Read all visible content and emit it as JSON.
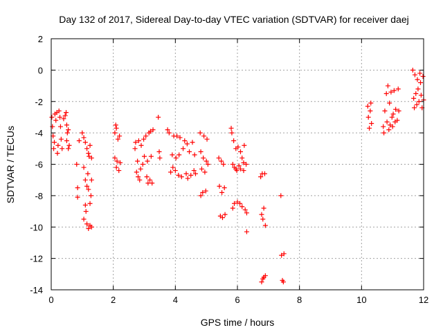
{
  "chart_data": {
    "type": "scatter",
    "title": "Day 132 of 2017, Sidereal Day-to-day VTEC variation (SDTVAR) for receiver daej",
    "xlabel": "GPS time / hours",
    "ylabel": "SDTVAR / TECUs",
    "xlim": [
      0,
      12
    ],
    "ylim": [
      -14,
      2
    ],
    "xticks": [
      0,
      2,
      4,
      6,
      8,
      10,
      12
    ],
    "yticks": [
      2,
      0,
      -2,
      -4,
      -6,
      -8,
      -10,
      -12,
      -14
    ],
    "grid": true,
    "marker": "plus",
    "color": "#ff0000",
    "series": [
      {
        "values": [
          [
            0.02,
            -3.0
          ],
          [
            0.04,
            -3.6
          ],
          [
            0.06,
            -4.2
          ],
          [
            0.08,
            -5.0
          ],
          [
            0.1,
            -4.6
          ],
          [
            0.12,
            -2.8
          ],
          [
            0.15,
            -3.2
          ],
          [
            0.18,
            -2.7
          ],
          [
            0.2,
            -5.3
          ],
          [
            0.22,
            -4.8
          ],
          [
            0.25,
            -2.6
          ],
          [
            0.28,
            -3.0
          ],
          [
            0.3,
            -3.6
          ],
          [
            0.32,
            -4.4
          ],
          [
            0.35,
            -5.0
          ],
          [
            0.4,
            -3.1
          ],
          [
            0.45,
            -2.9
          ],
          [
            0.48,
            -2.7
          ],
          [
            0.5,
            -3.5
          ],
          [
            0.5,
            -4.5
          ],
          [
            0.52,
            -4.0
          ],
          [
            0.55,
            -5.0
          ],
          [
            0.55,
            -3.8
          ],
          [
            0.58,
            -4.8
          ],
          [
            0.82,
            -6.0
          ],
          [
            0.85,
            -7.5
          ],
          [
            0.85,
            -8.1
          ],
          [
            0.9,
            -4.5
          ],
          [
            1.0,
            -4.0
          ],
          [
            1.05,
            -4.3
          ],
          [
            1.05,
            -6.2
          ],
          [
            1.1,
            -4.6
          ],
          [
            1.1,
            -7.0
          ],
          [
            1.12,
            -9.0
          ],
          [
            1.15,
            -5.0
          ],
          [
            1.15,
            -7.4
          ],
          [
            1.15,
            -9.8
          ],
          [
            1.2,
            -5.3
          ],
          [
            1.2,
            -7.6
          ],
          [
            1.2,
            -10.1
          ],
          [
            1.25,
            -4.8
          ],
          [
            1.25,
            -8.5
          ],
          [
            1.25,
            -9.9
          ],
          [
            1.3,
            -5.6
          ],
          [
            1.3,
            -7.0
          ],
          [
            1.3,
            -10.0
          ],
          [
            1.05,
            -9.5
          ],
          [
            1.1,
            -8.6
          ],
          [
            1.18,
            -6.6
          ],
          [
            1.22,
            -5.5
          ],
          [
            1.28,
            -8.0
          ],
          [
            2.05,
            -5.6
          ],
          [
            2.05,
            -4.0
          ],
          [
            2.08,
            -3.5
          ],
          [
            2.1,
            -6.2
          ],
          [
            2.1,
            -3.7
          ],
          [
            2.12,
            -5.8
          ],
          [
            2.15,
            -4.4
          ],
          [
            2.18,
            -6.4
          ],
          [
            2.2,
            -4.2
          ],
          [
            2.22,
            -5.9
          ],
          [
            2.7,
            -5.0
          ],
          [
            2.72,
            -4.6
          ],
          [
            2.75,
            -6.5
          ],
          [
            2.78,
            -5.8
          ],
          [
            2.8,
            -6.8
          ],
          [
            2.82,
            -4.5
          ],
          [
            2.85,
            -7.0
          ],
          [
            2.88,
            -6.3
          ],
          [
            2.9,
            -4.8
          ],
          [
            2.95,
            -6.0
          ],
          [
            2.98,
            -4.4
          ],
          [
            3.0,
            -5.5
          ],
          [
            3.05,
            -4.2
          ],
          [
            3.08,
            -6.8
          ],
          [
            3.1,
            -5.8
          ],
          [
            3.12,
            -7.2
          ],
          [
            3.15,
            -4.0
          ],
          [
            3.18,
            -7.0
          ],
          [
            3.2,
            -3.9
          ],
          [
            3.22,
            -5.5
          ],
          [
            3.25,
            -7.2
          ],
          [
            3.28,
            -3.8
          ],
          [
            3.45,
            -3.0
          ],
          [
            3.48,
            -5.2
          ],
          [
            3.5,
            -5.6
          ],
          [
            3.75,
            -3.8
          ],
          [
            3.8,
            -4.0
          ],
          [
            3.85,
            -6.5
          ],
          [
            3.9,
            -5.4
          ],
          [
            3.92,
            -6.2
          ],
          [
            3.95,
            -4.2
          ],
          [
            4.0,
            -6.4
          ],
          [
            4.02,
            -5.6
          ],
          [
            4.05,
            -4.2
          ],
          [
            4.1,
            -6.7
          ],
          [
            4.12,
            -5.4
          ],
          [
            4.15,
            -4.3
          ],
          [
            4.2,
            -6.8
          ],
          [
            4.25,
            -5.0
          ],
          [
            4.3,
            -4.5
          ],
          [
            4.35,
            -6.6
          ],
          [
            4.38,
            -4.7
          ],
          [
            4.4,
            -6.9
          ],
          [
            4.45,
            -5.2
          ],
          [
            4.5,
            -6.7
          ],
          [
            4.55,
            -4.6
          ],
          [
            4.6,
            -6.4
          ],
          [
            4.62,
            -5.4
          ],
          [
            4.65,
            -6.6
          ],
          [
            4.8,
            -4.0
          ],
          [
            4.82,
            -5.2
          ],
          [
            4.82,
            -8.0
          ],
          [
            4.85,
            -6.3
          ],
          [
            4.88,
            -7.8
          ],
          [
            4.9,
            -5.6
          ],
          [
            4.92,
            -4.2
          ],
          [
            4.95,
            -6.5
          ],
          [
            4.98,
            -7.7
          ],
          [
            5.0,
            -5.8
          ],
          [
            5.02,
            -4.4
          ],
          [
            5.05,
            -6.0
          ],
          [
            5.4,
            -5.6
          ],
          [
            5.42,
            -7.4
          ],
          [
            5.45,
            -9.3
          ],
          [
            5.48,
            -5.8
          ],
          [
            5.5,
            -7.8
          ],
          [
            5.52,
            -9.4
          ],
          [
            5.55,
            -6.0
          ],
          [
            5.58,
            -7.5
          ],
          [
            5.6,
            -9.2
          ],
          [
            5.8,
            -3.7
          ],
          [
            5.82,
            -4.0
          ],
          [
            5.85,
            -6.0
          ],
          [
            5.85,
            -8.8
          ],
          [
            5.88,
            -4.5
          ],
          [
            5.9,
            -6.2
          ],
          [
            5.9,
            -8.5
          ],
          [
            5.95,
            -5.0
          ],
          [
            5.98,
            -6.4
          ],
          [
            6.0,
            -8.4
          ],
          [
            6.02,
            -4.9
          ],
          [
            6.05,
            -6.1
          ],
          [
            6.08,
            -8.5
          ],
          [
            6.1,
            -5.2
          ],
          [
            6.15,
            -5.6
          ],
          [
            6.15,
            -8.7
          ],
          [
            6.2,
            -5.9
          ],
          [
            6.22,
            -4.8
          ],
          [
            6.25,
            -8.9
          ],
          [
            6.28,
            -6.0
          ],
          [
            6.3,
            -9.1
          ],
          [
            6.3,
            -10.3
          ],
          [
            6.2,
            -6.4
          ],
          [
            6.1,
            -6.3
          ],
          [
            5.95,
            -6.3
          ],
          [
            6.75,
            -6.8
          ],
          [
            6.78,
            -9.2
          ],
          [
            6.8,
            -6.6
          ],
          [
            6.82,
            -9.5
          ],
          [
            6.85,
            -8.8
          ],
          [
            6.88,
            -6.6
          ],
          [
            6.9,
            -9.9
          ],
          [
            6.78,
            -13.5
          ],
          [
            6.82,
            -13.3
          ],
          [
            6.85,
            -13.2
          ],
          [
            6.9,
            -13.1
          ],
          [
            7.4,
            -8.0
          ],
          [
            7.42,
            -11.8
          ],
          [
            7.45,
            -13.4
          ],
          [
            7.48,
            -13.5
          ],
          [
            7.5,
            -11.7
          ],
          [
            10.2,
            -2.3
          ],
          [
            10.22,
            -3.0
          ],
          [
            10.25,
            -3.7
          ],
          [
            10.28,
            -2.6
          ],
          [
            10.3,
            -2.1
          ],
          [
            10.32,
            -3.4
          ],
          [
            10.7,
            -3.6
          ],
          [
            10.72,
            -4.0
          ],
          [
            10.75,
            -2.6
          ],
          [
            10.8,
            -1.5
          ],
          [
            10.82,
            -3.3
          ],
          [
            10.85,
            -1.0
          ],
          [
            10.88,
            -3.8
          ],
          [
            10.9,
            -2.1
          ],
          [
            10.92,
            -3.5
          ],
          [
            10.95,
            -1.4
          ],
          [
            10.98,
            -3.0
          ],
          [
            11.0,
            -3.6
          ],
          [
            11.02,
            -2.8
          ],
          [
            11.05,
            -1.3
          ],
          [
            11.08,
            -3.3
          ],
          [
            11.1,
            -2.5
          ],
          [
            11.15,
            -3.2
          ],
          [
            11.18,
            -1.2
          ],
          [
            11.2,
            -2.6
          ],
          [
            11.65,
            0.0
          ],
          [
            11.68,
            -1.8
          ],
          [
            11.7,
            -2.4
          ],
          [
            11.72,
            -0.3
          ],
          [
            11.75,
            -1.5
          ],
          [
            11.78,
            -2.2
          ],
          [
            11.8,
            -0.6
          ],
          [
            11.82,
            -1.2
          ],
          [
            11.85,
            -2.0
          ],
          [
            11.88,
            -0.2
          ],
          [
            11.9,
            -0.8
          ],
          [
            11.92,
            -1.6
          ],
          [
            11.95,
            -2.4
          ],
          [
            11.98,
            -0.4
          ],
          [
            12.0,
            -1.9
          ]
        ]
      }
    ]
  }
}
